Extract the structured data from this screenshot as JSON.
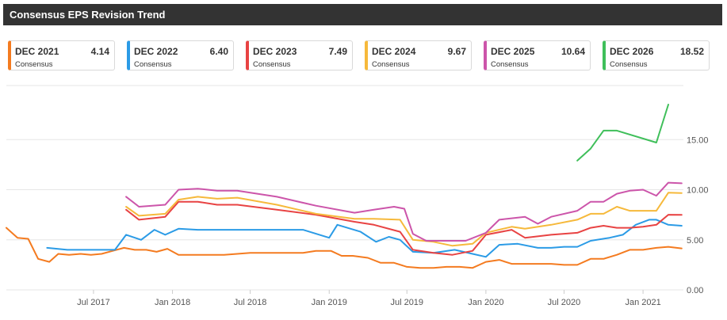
{
  "title": "Consensus EPS Revision Trend",
  "colors": {
    "DEC 2021": "#f47b20",
    "DEC 2022": "#2b9be6",
    "DEC 2023": "#e84343",
    "DEC 2024": "#f6b93b",
    "DEC 2025": "#cc55aa",
    "DEC 2026": "#3fbf5a",
    "title_bar": "#333333",
    "grid": "#e6e6e6"
  },
  "legend": [
    {
      "name": "DEC 2021",
      "value": "4.14",
      "sub": "Consensus"
    },
    {
      "name": "DEC 2022",
      "value": "6.40",
      "sub": "Consensus"
    },
    {
      "name": "DEC 2023",
      "value": "7.49",
      "sub": "Consensus"
    },
    {
      "name": "DEC 2024",
      "value": "9.67",
      "sub": "Consensus"
    },
    {
      "name": "DEC 2025",
      "value": "10.64",
      "sub": "Consensus"
    },
    {
      "name": "DEC 2026",
      "value": "18.52",
      "sub": "Consensus"
    }
  ],
  "chart_data": {
    "type": "line",
    "title": "Consensus EPS Revision Trend",
    "xlim": [
      "2016-12-10",
      "2021-04-05"
    ],
    "ylim": [
      0,
      20
    ],
    "y_ticks": [
      "0.00",
      "5.00",
      "10.00",
      "15.00"
    ],
    "y_tick_values": [
      0,
      5,
      10,
      15
    ],
    "x_ticks": [
      "Jul 2017",
      "Jan 2018",
      "Jul 2018",
      "Jan 2019",
      "Jul 2019",
      "Jan 2020",
      "Jul 2020",
      "Jan 2021"
    ],
    "x_tick_dates": [
      "2017-07-01",
      "2018-01-01",
      "2018-07-01",
      "2019-01-01",
      "2019-07-01",
      "2020-01-01",
      "2020-07-01",
      "2021-01-01"
    ],
    "grid": "horizontal",
    "series": [
      {
        "name": "DEC 2021",
        "points": [
          [
            "2016-12-10",
            6.2
          ],
          [
            "2017-01-05",
            5.2
          ],
          [
            "2017-01-30",
            5.1
          ],
          [
            "2017-02-22",
            3.1
          ],
          [
            "2017-03-20",
            2.8
          ],
          [
            "2017-04-10",
            3.6
          ],
          [
            "2017-05-05",
            3.5
          ],
          [
            "2017-06-01",
            3.6
          ],
          [
            "2017-06-25",
            3.5
          ],
          [
            "2017-07-20",
            3.6
          ],
          [
            "2017-08-15",
            3.9
          ],
          [
            "2017-09-10",
            4.2
          ],
          [
            "2017-10-05",
            4.0
          ],
          [
            "2017-11-01",
            4.0
          ],
          [
            "2017-11-25",
            3.8
          ],
          [
            "2017-12-20",
            4.1
          ],
          [
            "2018-01-15",
            3.5
          ],
          [
            "2018-03-01",
            3.5
          ],
          [
            "2018-05-01",
            3.5
          ],
          [
            "2018-07-01",
            3.7
          ],
          [
            "2018-09-01",
            3.7
          ],
          [
            "2018-11-01",
            3.7
          ],
          [
            "2018-12-01",
            3.9
          ],
          [
            "2019-01-05",
            3.9
          ],
          [
            "2019-01-30",
            3.4
          ],
          [
            "2019-02-25",
            3.4
          ],
          [
            "2019-04-01",
            3.2
          ],
          [
            "2019-05-01",
            2.7
          ],
          [
            "2019-06-01",
            2.7
          ],
          [
            "2019-07-01",
            2.3
          ],
          [
            "2019-08-01",
            2.2
          ],
          [
            "2019-09-01",
            2.2
          ],
          [
            "2019-10-01",
            2.3
          ],
          [
            "2019-11-01",
            2.3
          ],
          [
            "2019-12-01",
            2.2
          ],
          [
            "2020-01-01",
            2.8
          ],
          [
            "2020-02-01",
            3.0
          ],
          [
            "2020-03-01",
            2.6
          ],
          [
            "2020-04-01",
            2.6
          ],
          [
            "2020-05-01",
            2.6
          ],
          [
            "2020-06-01",
            2.6
          ],
          [
            "2020-07-01",
            2.5
          ],
          [
            "2020-08-01",
            2.5
          ],
          [
            "2020-09-01",
            3.1
          ],
          [
            "2020-10-01",
            3.1
          ],
          [
            "2020-11-01",
            3.5
          ],
          [
            "2020-12-01",
            4.0
          ],
          [
            "2021-01-01",
            4.0
          ],
          [
            "2021-02-01",
            4.2
          ],
          [
            "2021-03-01",
            4.3
          ],
          [
            "2021-04-01",
            4.14
          ]
        ]
      },
      {
        "name": "DEC 2022",
        "points": [
          [
            "2017-03-15",
            4.2
          ],
          [
            "2017-05-01",
            4.0
          ],
          [
            "2017-06-15",
            4.0
          ],
          [
            "2017-08-01",
            4.0
          ],
          [
            "2017-08-20",
            4.0
          ],
          [
            "2017-09-15",
            5.5
          ],
          [
            "2017-10-20",
            5.0
          ],
          [
            "2017-11-20",
            6.0
          ],
          [
            "2017-12-15",
            5.5
          ],
          [
            "2018-01-15",
            6.1
          ],
          [
            "2018-03-01",
            6.0
          ],
          [
            "2018-05-01",
            6.0
          ],
          [
            "2018-07-01",
            6.0
          ],
          [
            "2018-09-01",
            6.0
          ],
          [
            "2018-11-01",
            6.0
          ],
          [
            "2019-01-01",
            5.2
          ],
          [
            "2019-01-20",
            6.5
          ],
          [
            "2019-03-15",
            5.8
          ],
          [
            "2019-04-20",
            4.8
          ],
          [
            "2019-05-20",
            5.3
          ],
          [
            "2019-06-15",
            5.0
          ],
          [
            "2019-07-15",
            3.8
          ],
          [
            "2019-09-01",
            3.7
          ],
          [
            "2019-10-20",
            4.0
          ],
          [
            "2019-12-01",
            3.6
          ],
          [
            "2020-01-01",
            3.3
          ],
          [
            "2020-02-01",
            4.5
          ],
          [
            "2020-03-15",
            4.6
          ],
          [
            "2020-05-01",
            4.2
          ],
          [
            "2020-06-01",
            4.2
          ],
          [
            "2020-07-01",
            4.3
          ],
          [
            "2020-08-01",
            4.3
          ],
          [
            "2020-09-01",
            4.9
          ],
          [
            "2020-10-15",
            5.2
          ],
          [
            "2020-11-15",
            5.5
          ],
          [
            "2020-12-15",
            6.5
          ],
          [
            "2021-01-15",
            7.0
          ],
          [
            "2021-02-01",
            7.0
          ],
          [
            "2021-03-01",
            6.5
          ],
          [
            "2021-04-01",
            6.4
          ]
        ]
      },
      {
        "name": "DEC 2023",
        "points": [
          [
            "2017-09-15",
            8.0
          ],
          [
            "2017-10-15",
            7.0
          ],
          [
            "2017-12-15",
            7.3
          ],
          [
            "2018-01-15",
            8.8
          ],
          [
            "2018-03-01",
            8.8
          ],
          [
            "2018-04-15",
            8.5
          ],
          [
            "2018-06-01",
            8.5
          ],
          [
            "2018-09-01",
            8.0
          ],
          [
            "2018-12-01",
            7.5
          ],
          [
            "2019-03-01",
            6.8
          ],
          [
            "2019-04-15",
            6.5
          ],
          [
            "2019-06-15",
            5.8
          ],
          [
            "2019-07-15",
            4.0
          ],
          [
            "2019-09-01",
            3.7
          ],
          [
            "2019-10-15",
            3.5
          ],
          [
            "2019-12-01",
            3.9
          ],
          [
            "2020-01-01",
            5.5
          ],
          [
            "2020-03-01",
            6.0
          ],
          [
            "2020-04-01",
            5.2
          ],
          [
            "2020-06-01",
            5.5
          ],
          [
            "2020-08-01",
            5.7
          ],
          [
            "2020-09-01",
            6.2
          ],
          [
            "2020-10-01",
            6.4
          ],
          [
            "2020-11-01",
            6.2
          ],
          [
            "2020-12-01",
            6.2
          ],
          [
            "2021-01-01",
            6.3
          ],
          [
            "2021-02-01",
            6.5
          ],
          [
            "2021-03-01",
            7.5
          ],
          [
            "2021-04-01",
            7.49
          ]
        ]
      },
      {
        "name": "DEC 2024",
        "points": [
          [
            "2017-09-15",
            8.3
          ],
          [
            "2017-10-15",
            7.4
          ],
          [
            "2017-12-15",
            7.6
          ],
          [
            "2018-01-15",
            9.0
          ],
          [
            "2018-03-01",
            9.3
          ],
          [
            "2018-04-15",
            9.1
          ],
          [
            "2018-06-01",
            9.2
          ],
          [
            "2018-09-01",
            8.5
          ],
          [
            "2018-12-01",
            7.6
          ],
          [
            "2019-03-01",
            7.1
          ],
          [
            "2019-04-15",
            7.1
          ],
          [
            "2019-06-15",
            7.0
          ],
          [
            "2019-07-15",
            5.0
          ],
          [
            "2019-09-01",
            4.8
          ],
          [
            "2019-10-15",
            4.4
          ],
          [
            "2019-12-01",
            4.6
          ],
          [
            "2020-01-01",
            5.7
          ],
          [
            "2020-03-01",
            6.3
          ],
          [
            "2020-04-01",
            6.1
          ],
          [
            "2020-06-01",
            6.5
          ],
          [
            "2020-08-01",
            7.0
          ],
          [
            "2020-09-01",
            7.6
          ],
          [
            "2020-10-01",
            7.6
          ],
          [
            "2020-11-01",
            8.3
          ],
          [
            "2020-12-01",
            7.9
          ],
          [
            "2021-01-01",
            7.9
          ],
          [
            "2021-02-01",
            7.9
          ],
          [
            "2021-03-01",
            9.7
          ],
          [
            "2021-04-01",
            9.67
          ]
        ]
      },
      {
        "name": "DEC 2025",
        "points": [
          [
            "2017-09-15",
            9.3
          ],
          [
            "2017-10-15",
            8.3
          ],
          [
            "2017-12-15",
            8.5
          ],
          [
            "2018-01-15",
            10.0
          ],
          [
            "2018-03-01",
            10.1
          ],
          [
            "2018-04-15",
            9.9
          ],
          [
            "2018-06-01",
            9.9
          ],
          [
            "2018-09-01",
            9.3
          ],
          [
            "2018-12-01",
            8.4
          ],
          [
            "2019-03-01",
            7.7
          ],
          [
            "2019-04-15",
            8.0
          ],
          [
            "2019-06-01",
            8.3
          ],
          [
            "2019-06-25",
            8.1
          ],
          [
            "2019-07-15",
            5.6
          ],
          [
            "2019-08-15",
            4.9
          ],
          [
            "2019-10-01",
            4.9
          ],
          [
            "2019-11-15",
            4.9
          ],
          [
            "2020-01-01",
            5.7
          ],
          [
            "2020-02-01",
            7.0
          ],
          [
            "2020-04-01",
            7.3
          ],
          [
            "2020-05-01",
            6.6
          ],
          [
            "2020-06-01",
            7.3
          ],
          [
            "2020-08-01",
            7.9
          ],
          [
            "2020-09-01",
            8.8
          ],
          [
            "2020-10-01",
            8.8
          ],
          [
            "2020-11-01",
            9.6
          ],
          [
            "2020-12-01",
            9.9
          ],
          [
            "2021-01-01",
            10.0
          ],
          [
            "2021-02-01",
            9.4
          ],
          [
            "2021-03-01",
            10.7
          ],
          [
            "2021-04-01",
            10.64
          ]
        ]
      },
      {
        "name": "DEC 2026",
        "points": [
          [
            "2020-08-01",
            12.9
          ],
          [
            "2020-09-01",
            14.1
          ],
          [
            "2020-10-01",
            15.9
          ],
          [
            "2020-11-01",
            15.9
          ],
          [
            "2021-02-01",
            14.7
          ],
          [
            "2021-03-01",
            18.5
          ]
        ]
      }
    ]
  }
}
